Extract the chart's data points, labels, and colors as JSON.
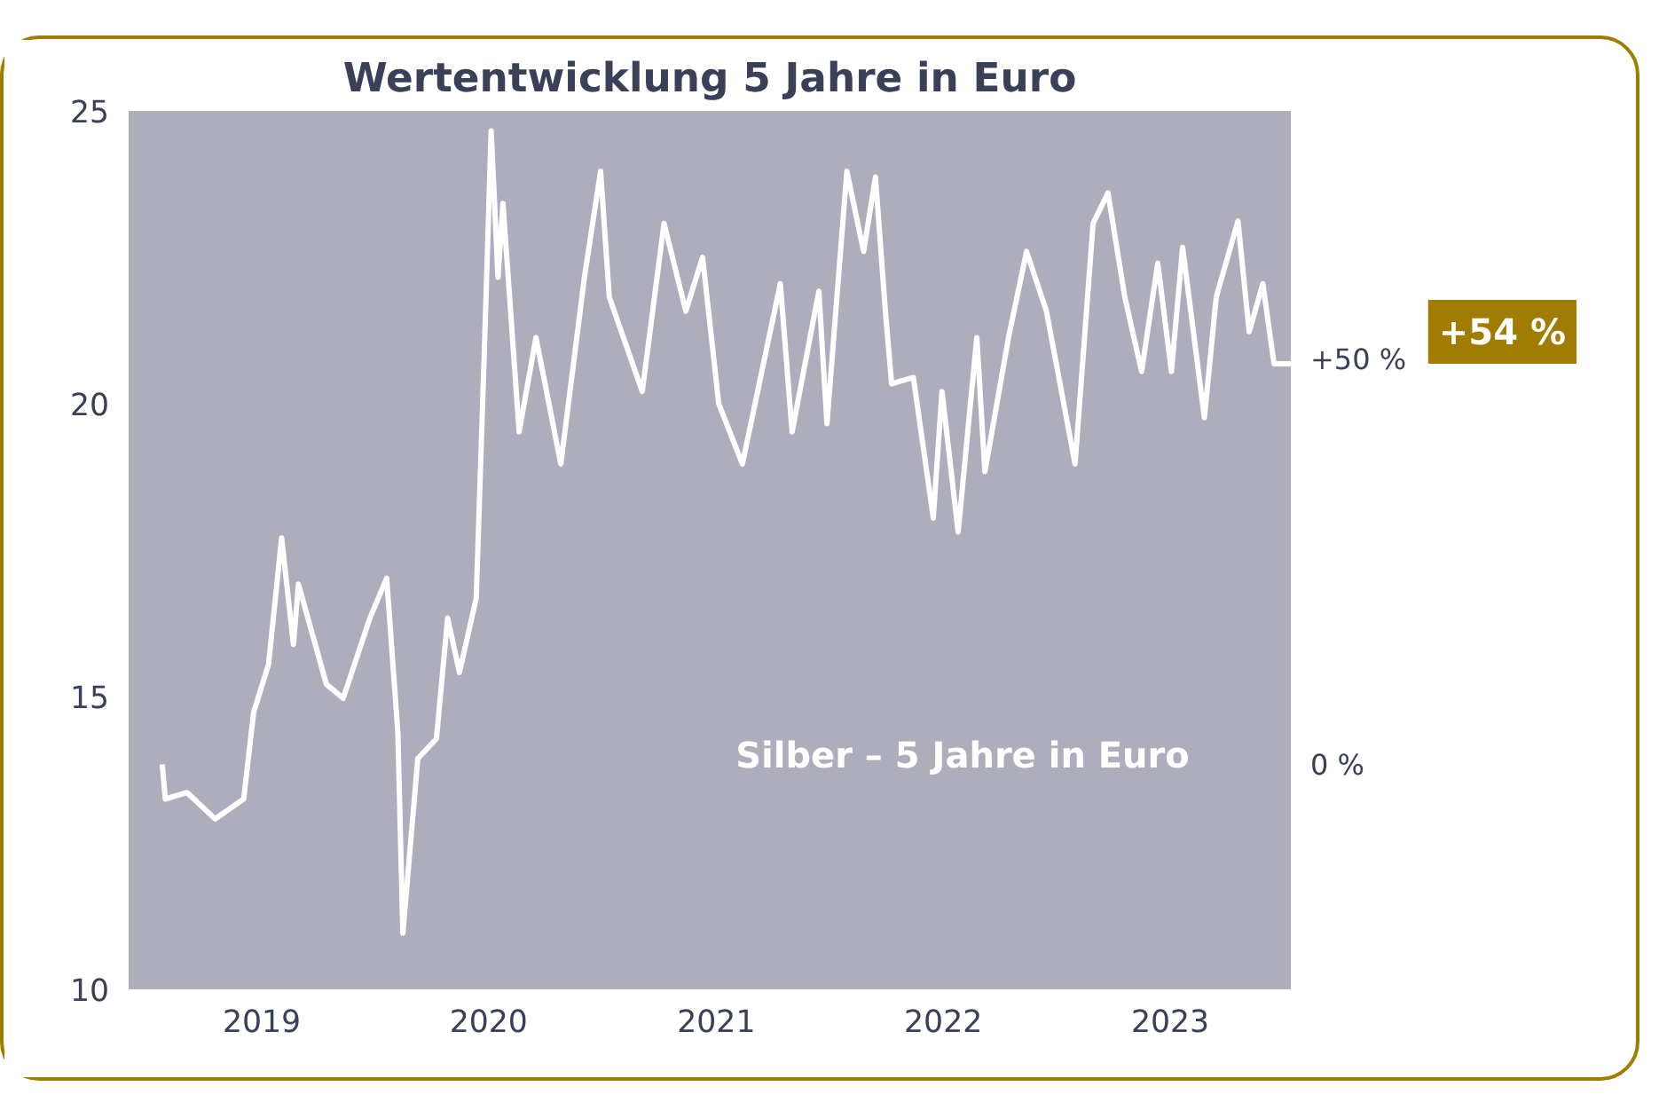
{
  "chart_data": {
    "type": "line",
    "title": "Wertentwicklung 5 Jahre in Euro",
    "annotations": [
      "+54 %",
      "Silber – 5 Jahre in Euro"
    ],
    "x": [
      "2018-07-25",
      "2018-07-30",
      "2018-09-03",
      "2018-10-18",
      "2018-12-03",
      "2018-12-19",
      "2019-01-12",
      "2019-02-02",
      "2019-02-21",
      "2019-03-01",
      "2019-04-15",
      "2019-05-12",
      "2019-06-24",
      "2019-07-21",
      "2019-08-08",
      "2019-08-16",
      "2019-09-09",
      "2019-10-09",
      "2019-10-27",
      "2019-11-15",
      "2019-12-12",
      "2019-12-25",
      "2020-01-05",
      "2020-01-16",
      "2020-01-24",
      "2020-02-19",
      "2020-03-17",
      "2020-04-26",
      "2020-06-03",
      "2020-06-29",
      "2020-07-13",
      "2020-09-04",
      "2020-10-09",
      "2020-11-13",
      "2020-12-10",
      "2021-01-05",
      "2021-02-12",
      "2021-04-14",
      "2021-05-03",
      "2021-06-15",
      "2021-06-28",
      "2021-07-30",
      "2021-08-26",
      "2021-09-14",
      "2021-09-30",
      "2021-10-10",
      "2021-11-14",
      "2021-12-16",
      "2021-12-30",
      "2022-01-25",
      "2022-02-24",
      "2022-03-09",
      "2022-04-16",
      "2022-05-15",
      "2022-06-16",
      "2022-08-01",
      "2022-08-30",
      "2022-09-23",
      "2022-10-20",
      "2022-11-16",
      "2022-12-12",
      "2023-01-03",
      "2023-01-21",
      "2023-02-25",
      "2023-03-16",
      "2023-04-20",
      "2023-05-08",
      "2023-05-30",
      "2023-06-17",
      "2023-07-14"
    ],
    "series": [
      {
        "color": "#ffffff",
        "values": [
          13.84,
          13.25,
          13.36,
          12.91,
          13.25,
          14.73,
          15.55,
          17.71,
          15.89,
          16.92,
          15.21,
          14.97,
          16.34,
          17.02,
          14.38,
          10.96,
          13.94,
          14.28,
          16.34,
          15.41,
          16.68,
          20.89,
          24.66,
          22.16,
          23.42,
          19.52,
          21.13,
          18.97,
          22.16,
          23.97,
          21.82,
          20.21,
          23.08,
          21.58,
          22.5,
          20.0,
          18.97,
          22.05,
          19.52,
          21.92,
          19.66,
          23.97,
          22.6,
          23.87,
          21.58,
          20.34,
          20.45,
          18.05,
          20.21,
          17.81,
          21.13,
          18.84,
          21.13,
          22.6,
          21.58,
          18.97,
          23.08,
          23.6,
          21.82,
          20.55,
          22.4,
          20.55,
          22.67,
          19.76,
          21.82,
          23.12,
          21.23,
          22.05,
          20.68,
          20.68
        ]
      }
    ],
    "xlim": [
      "2018-06-01",
      "2023-07-14"
    ],
    "xticks": [
      {
        "value": "2019",
        "label": "2019"
      },
      {
        "value": "2020",
        "label": "2020"
      },
      {
        "value": "2021",
        "label": "2021"
      },
      {
        "value": "2022",
        "label": "2022"
      },
      {
        "value": "2023",
        "label": "2023"
      }
    ],
    "ylim": [
      10,
      25
    ],
    "yticks": [
      10,
      15,
      20,
      25
    ],
    "y2lim": [
      -27.7,
      80.6
    ],
    "y2ticks": [
      {
        "value": 0,
        "label": "0 %"
      },
      {
        "value": 50,
        "label": "+50 %"
      }
    ],
    "grid": false,
    "marker": "none",
    "line_style": "solid"
  }
}
